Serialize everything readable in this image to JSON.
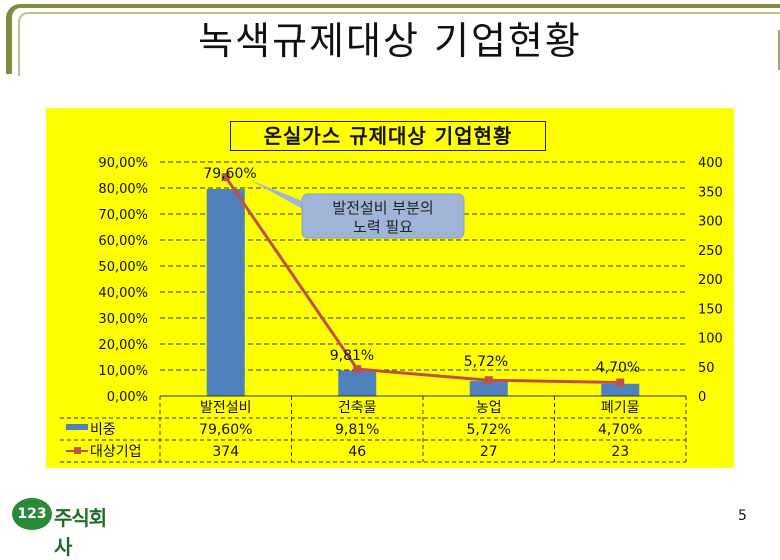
{
  "slide": {
    "title": "녹색규제대상 기업현황",
    "page_number": "5",
    "logo": {
      "badge": "123",
      "text": "주식회사"
    }
  },
  "colors": {
    "panel": "#ffff00",
    "bar": "#4f81bd",
    "line": "#c0504d",
    "callout": "#9fb4d6"
  },
  "chart_data": {
    "type": "bar",
    "title": "온실가스 규제대상 기업현황",
    "categories": [
      "발전설비",
      "건축물",
      "농업",
      "폐기물"
    ],
    "series": [
      {
        "name": "비중",
        "kind": "bar",
        "axis": "left",
        "values": [
          79.6,
          9.81,
          5.72,
          4.7
        ],
        "labels": [
          "79,60%",
          "9,81%",
          "5,72%",
          "4,70%"
        ]
      },
      {
        "name": "대상기업",
        "kind": "line",
        "axis": "right",
        "values": [
          374,
          46,
          27,
          23
        ],
        "labels": [
          "374",
          "46",
          "27",
          "23"
        ]
      }
    ],
    "y_left": {
      "min": 0,
      "max": 90,
      "step": 10,
      "tick_labels": [
        "0,00%",
        "10,00%",
        "20,00%",
        "30,00%",
        "40,00%",
        "50,00%",
        "60,00%",
        "70,00%",
        "80,00%",
        "90,00%"
      ]
    },
    "y_right": {
      "min": 0,
      "max": 400,
      "step": 50,
      "tick_labels": [
        "0",
        "50",
        "100",
        "150",
        "200",
        "250",
        "300",
        "350",
        "400"
      ]
    },
    "grid": true,
    "legend": "data-table",
    "annotation": {
      "text_line1": "발전설비 부분의",
      "text_line2": "노력 필요"
    }
  }
}
